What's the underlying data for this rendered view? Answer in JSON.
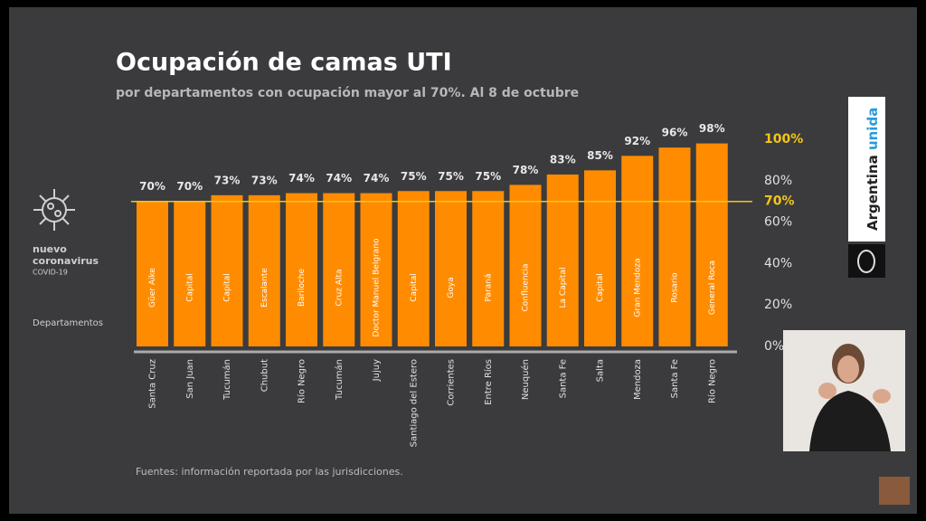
{
  "chart_data": {
    "type": "bar",
    "title": "Ocupación de camas UTI",
    "subtitle": "por departamentos con ocupación mayor al 70%. Al 8 de octubre",
    "categories": [
      "Güer Aike",
      "Capital",
      "Capital",
      "Escalante",
      "Bariloche",
      "Cruz Alta",
      "Doctor Manuel Belgrano",
      "Capital",
      "Goya",
      "Paraná",
      "Confluencia",
      "La Capital",
      "Capital",
      "Gran Mendoza",
      "Rosario",
      "General Roca"
    ],
    "provinces": [
      "Santa Cruz",
      "San Juan",
      "Tucumán",
      "Chubut",
      "Río Negro",
      "Tucumán",
      "Jujuy",
      "Santiago del Estero",
      "Corrientes",
      "Entre Ríos",
      "Neuquén",
      "Santa Fe",
      "Salta",
      "Mendoza",
      "Santa Fe",
      "Río Negro"
    ],
    "values": [
      70,
      70,
      73,
      73,
      74,
      74,
      74,
      75,
      75,
      75,
      78,
      83,
      85,
      92,
      96,
      98
    ],
    "value_labels": [
      "70%",
      "70%",
      "73%",
      "73%",
      "74%",
      "74%",
      "74%",
      "75%",
      "75%",
      "75%",
      "78%",
      "83%",
      "85%",
      "92%",
      "96%",
      "98%"
    ],
    "color": "#ff8c00",
    "ylim": [
      0,
      100
    ],
    "yticks": [
      {
        "value": 0,
        "label": "0%"
      },
      {
        "value": 20,
        "label": "20%"
      },
      {
        "value": 40,
        "label": "40%"
      },
      {
        "value": 60,
        "label": "60%"
      },
      {
        "value": 70,
        "label": "70%"
      },
      {
        "value": 80,
        "label": "80%"
      },
      {
        "value": 100,
        "label": "100%"
      }
    ],
    "threshold": 70,
    "threshold_color": "#f5c518",
    "axis_label": "Departamentos",
    "source": "Fuentes: información reportada por las jurisdicciones."
  },
  "brand": {
    "line1": "nuevo",
    "line2": "coronavirus",
    "line3": "COVID-19"
  },
  "logo": {
    "word1": "Argentina",
    "word2": "unida"
  }
}
